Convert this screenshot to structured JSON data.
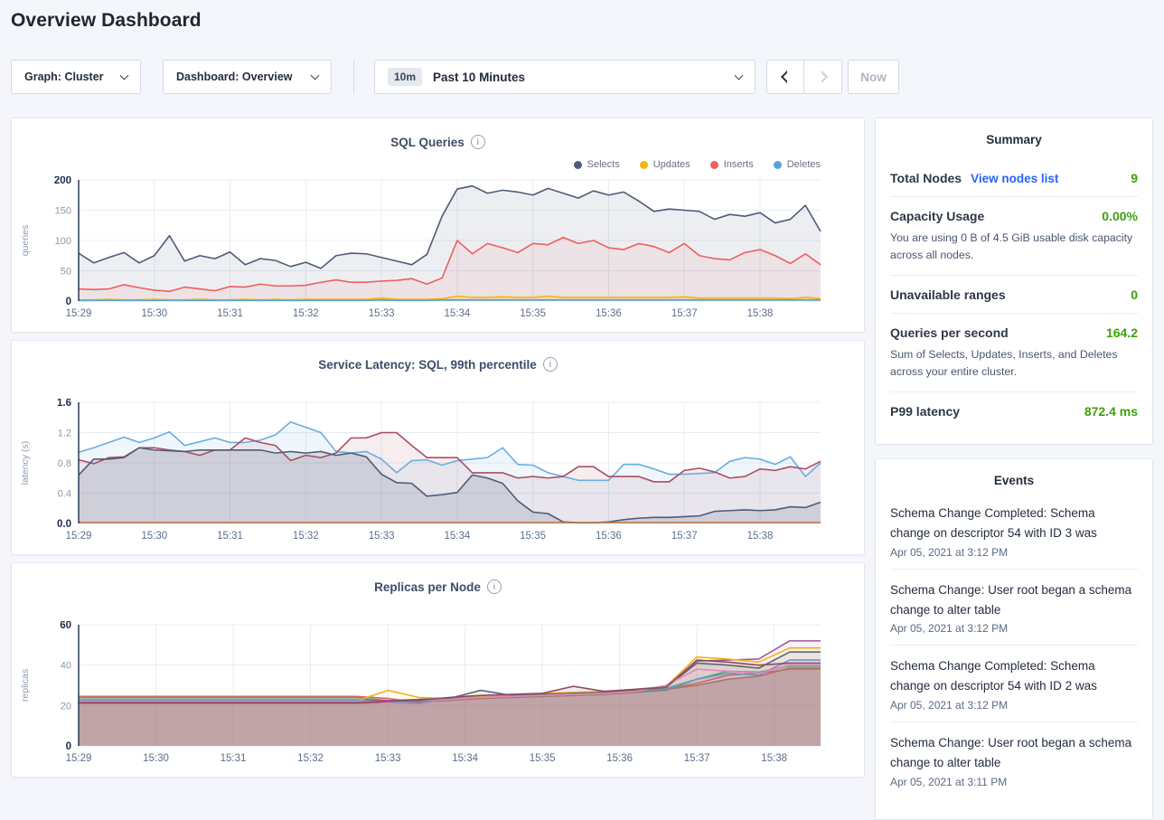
{
  "page": {
    "title": "Overview Dashboard"
  },
  "controls": {
    "graph_selector": {
      "label": "Graph: Cluster"
    },
    "dashboard_selector": {
      "label": "Dashboard: Overview"
    },
    "time_selector": {
      "badge": "10m",
      "label": "Past 10 Minutes"
    },
    "now_button": "Now"
  },
  "icons": {
    "dropdown_chevron": "chevron-down",
    "time_prev": "chevron-left",
    "time_next": "chevron-right",
    "chart_info": "info-circle"
  },
  "colors": {
    "accent_green": "#3da10a",
    "link_blue": "#2962ff",
    "grid": "#e8ecf2",
    "axis": "#2a3b5a",
    "tick_bold": "#1c2b49",
    "tick_mid": "#8b99b0",
    "x_tick": "#5c6f8d"
  },
  "chart_data": [
    {
      "type": "area",
      "title": "SQL Queries",
      "ylabel": "queries",
      "ylim": [
        0,
        200
      ],
      "ytick_labels": [
        "0",
        "50",
        "100",
        "150",
        "200"
      ],
      "yticks": [
        0,
        50,
        100,
        150,
        200
      ],
      "x_tick_labels": [
        "15:29",
        "15:30",
        "15:31",
        "15:32",
        "15:33",
        "15:34",
        "15:35",
        "15:36",
        "15:37",
        "15:38"
      ],
      "x_step_minutes": 0.2,
      "grid": true,
      "legend_position": "top-right",
      "series": [
        {
          "name": "Selects",
          "color": "#4e5c77",
          "fill_opacity": 0.1,
          "values": [
            79,
            63,
            72,
            80,
            63,
            75,
            108,
            66,
            75,
            70,
            81,
            60,
            70,
            67,
            57,
            64,
            54,
            75,
            79,
            78,
            72,
            66,
            60,
            77,
            140,
            185,
            190,
            178,
            183,
            180,
            175,
            186,
            178,
            170,
            182,
            175,
            180,
            165,
            148,
            152,
            150,
            148,
            135,
            143,
            140,
            146,
            129,
            135,
            158,
            115
          ]
        },
        {
          "name": "Updates",
          "color": "#f2b70a",
          "fill_opacity": 0.12,
          "values": [
            2,
            2,
            3,
            2,
            2,
            3,
            2,
            2,
            3,
            2,
            2,
            3,
            2,
            3,
            2,
            3,
            3,
            3,
            3,
            3,
            5,
            3,
            3,
            3,
            4,
            8,
            6,
            6,
            7,
            6,
            6,
            8,
            6,
            6,
            6,
            6,
            6,
            6,
            6,
            6,
            7,
            5,
            5,
            5,
            5,
            5,
            5,
            4,
            6,
            4
          ]
        },
        {
          "name": "Inserts",
          "color": "#ef5e5e",
          "fill_opacity": 0.08,
          "values": [
            20,
            19,
            20,
            27,
            22,
            18,
            16,
            23,
            20,
            17,
            24,
            23,
            28,
            25,
            25,
            26,
            31,
            35,
            31,
            31,
            33,
            34,
            37,
            28,
            38,
            100,
            78,
            95,
            88,
            80,
            95,
            93,
            105,
            95,
            100,
            88,
            85,
            95,
            90,
            80,
            95,
            75,
            70,
            68,
            80,
            85,
            75,
            62,
            78,
            60
          ]
        },
        {
          "name": "Deletes",
          "color": "#57a4d8",
          "fill_opacity": 0.25,
          "values": [
            1,
            1,
            1,
            1,
            1,
            1,
            1,
            1,
            1,
            1,
            1,
            1,
            1,
            1,
            1,
            1,
            1,
            1,
            1,
            1,
            2,
            1,
            1,
            1,
            2,
            2,
            2,
            2,
            2,
            2,
            2,
            2,
            2,
            2,
            2,
            2,
            2,
            2,
            2,
            2,
            2,
            2,
            2,
            2,
            2,
            2,
            2,
            2,
            2,
            2
          ]
        }
      ]
    },
    {
      "type": "area",
      "title": "Service Latency: SQL, 99th percentile",
      "ylabel": "latency (s)",
      "ylim": [
        0,
        1.6
      ],
      "ytick_labels": [
        "0.0",
        "0.4",
        "0.8",
        "1.2",
        "1.6"
      ],
      "yticks": [
        0,
        0.4,
        0.8,
        1.2,
        1.6
      ],
      "x_tick_labels": [
        "15:29",
        "15:30",
        "15:31",
        "15:32",
        "15:33",
        "15:34",
        "15:35",
        "15:36",
        "15:37",
        "15:38"
      ],
      "x_step_minutes": 0.2,
      "grid": true,
      "legend_position": "none",
      "series": [
        {
          "name": "p99-light-blue",
          "color": "#6aaede",
          "fill_opacity": 0.1,
          "values": [
            0.94,
            1.0,
            1.07,
            1.14,
            1.07,
            1.13,
            1.21,
            1.03,
            1.08,
            1.13,
            1.07,
            1.07,
            1.1,
            1.17,
            1.34,
            1.27,
            1.2,
            0.95,
            0.93,
            0.95,
            0.85,
            0.67,
            0.83,
            0.84,
            0.77,
            0.83,
            0.85,
            0.87,
            1.0,
            0.78,
            0.77,
            0.67,
            0.62,
            0.57,
            0.57,
            0.57,
            0.78,
            0.78,
            0.72,
            0.65,
            0.65,
            0.66,
            0.67,
            0.82,
            0.87,
            0.85,
            0.78,
            0.88,
            0.62,
            0.8
          ]
        },
        {
          "name": "p99-dark-red",
          "color": "#a94e63",
          "fill_opacity": 0.1,
          "values": [
            0.84,
            0.79,
            0.87,
            0.88,
            1.0,
            1.0,
            0.97,
            0.95,
            0.9,
            0.97,
            0.97,
            1.13,
            1.07,
            1.03,
            0.83,
            0.9,
            0.87,
            0.93,
            1.13,
            1.13,
            1.2,
            1.2,
            1.03,
            0.87,
            0.87,
            0.87,
            0.67,
            0.67,
            0.67,
            0.6,
            0.62,
            0.6,
            0.62,
            0.75,
            0.75,
            0.62,
            0.62,
            0.62,
            0.55,
            0.55,
            0.7,
            0.73,
            0.68,
            0.6,
            0.62,
            0.72,
            0.7,
            0.75,
            0.72,
            0.82
          ]
        },
        {
          "name": "p99-navy",
          "color": "#4e5c77",
          "fill_opacity": 0.16,
          "values": [
            0.64,
            0.85,
            0.85,
            0.87,
            1.0,
            0.97,
            0.96,
            0.95,
            0.97,
            0.97,
            0.97,
            0.97,
            0.97,
            0.93,
            0.95,
            0.93,
            0.95,
            0.9,
            0.93,
            0.88,
            0.65,
            0.54,
            0.53,
            0.36,
            0.38,
            0.41,
            0.64,
            0.6,
            0.53,
            0.3,
            0.15,
            0.13,
            0.02,
            0.01,
            0.01,
            0.02,
            0.05,
            0.07,
            0.08,
            0.08,
            0.09,
            0.1,
            0.16,
            0.17,
            0.18,
            0.17,
            0.18,
            0.22,
            0.21,
            0.28
          ]
        },
        {
          "name": "p99-orange",
          "color": "#c1773f",
          "fill_opacity": 0,
          "constant": 0.012
        }
      ]
    },
    {
      "type": "area",
      "title": "Replicas per Node",
      "ylabel": "replicas",
      "ylim": [
        0,
        60
      ],
      "ytick_labels": [
        "0",
        "20",
        "40",
        "60"
      ],
      "yticks": [
        0,
        20,
        40,
        60
      ],
      "x_tick_labels": [
        "15:29",
        "15:30",
        "15:31",
        "15:32",
        "15:33",
        "15:34",
        "15:35",
        "15:36",
        "15:37",
        "15:38"
      ],
      "x_step_minutes": 0.4,
      "grid": true,
      "legend_position": "none",
      "series": [
        {
          "name": "replica-series-1",
          "color": "#cf6960",
          "fill_opacity": 0.08,
          "values": [
            24.5,
            24.5,
            24.5,
            24.5,
            24.5,
            24.5,
            24.5,
            24.5,
            24.5,
            24.5,
            23.5,
            21.5,
            23,
            24,
            24.5,
            25,
            25.5,
            26,
            27,
            28,
            31,
            35,
            36,
            38,
            38
          ]
        },
        {
          "name": "replica-series-2",
          "color": "#57a77a",
          "fill_opacity": 0.08,
          "values": [
            23.8,
            23.8,
            23.8,
            23.8,
            23.8,
            23.8,
            23.8,
            23.8,
            23.8,
            23.8,
            22.5,
            22,
            23,
            23.5,
            24.5,
            25,
            25.5,
            26,
            26.5,
            27.5,
            33,
            37,
            36.5,
            39.5,
            39.5
          ]
        },
        {
          "name": "replica-series-3",
          "color": "#a9766c",
          "fill_opacity": 0.3,
          "values": [
            21,
            21,
            21,
            21,
            21,
            21,
            21,
            21,
            21,
            21,
            21.5,
            22,
            22.5,
            23.5,
            24,
            24.5,
            25,
            25.5,
            26.5,
            28,
            30,
            33,
            34.5,
            38.5,
            38.5
          ]
        },
        {
          "name": "replica-series-4",
          "color": "#a855a0",
          "fill_opacity": 0.07,
          "values": [
            22.8,
            22.8,
            22.8,
            22.8,
            22.8,
            22.8,
            22.8,
            22.8,
            22.8,
            22.8,
            22.5,
            23,
            23.5,
            24.5,
            25,
            25.5,
            26,
            26.5,
            27.5,
            29,
            42,
            42.5,
            43,
            52,
            52
          ]
        },
        {
          "name": "replica-series-5",
          "color": "#edb41c",
          "fill_opacity": 0.07,
          "values": [
            22.3,
            22.3,
            22.3,
            22.3,
            22.3,
            22.3,
            22.3,
            22.3,
            22.3,
            22.3,
            27.5,
            24,
            23.5,
            24.5,
            25.5,
            26,
            26.5,
            27,
            28,
            29.5,
            44,
            43,
            41.5,
            48.5,
            48.5
          ]
        },
        {
          "name": "replica-series-6",
          "color": "#6f94c4",
          "fill_opacity": 0.07,
          "values": [
            22.6,
            22.6,
            22.6,
            22.6,
            22.6,
            22.6,
            22.6,
            22.6,
            22.6,
            22.6,
            21.5,
            21,
            23.5,
            24,
            24.5,
            25,
            25.5,
            26,
            27,
            28.5,
            33,
            36,
            35,
            42.5,
            42.5
          ]
        },
        {
          "name": "replica-series-7",
          "color": "#5d6876",
          "fill_opacity": 0.07,
          "values": [
            21.8,
            21.8,
            21.8,
            21.8,
            21.8,
            21.8,
            21.8,
            21.8,
            21.8,
            21.8,
            22,
            23,
            23.5,
            27.5,
            25,
            25.5,
            26,
            26.5,
            27.5,
            29,
            41,
            40,
            38.5,
            46.5,
            46.5
          ]
        },
        {
          "name": "replica-series-8",
          "color": "#e289ba",
          "fill_opacity": 0.07,
          "values": [
            22.1,
            22.1,
            22.1,
            22.1,
            22.1,
            22.1,
            22.1,
            22.1,
            22.1,
            22.1,
            21.5,
            22.5,
            23,
            24,
            24.5,
            25,
            25.5,
            26,
            27,
            30,
            38,
            37,
            36,
            40,
            40
          ]
        },
        {
          "name": "replica-series-9",
          "color": "#8f4b60",
          "fill_opacity": 0.12,
          "values": [
            21.4,
            21.4,
            21.4,
            21.4,
            21.4,
            21.4,
            21.4,
            21.4,
            21.4,
            21.4,
            22,
            22.5,
            24,
            25,
            25.5,
            26,
            29.5,
            27,
            28,
            29,
            42.5,
            41.5,
            40,
            41,
            41
          ]
        }
      ]
    }
  ],
  "summary": {
    "title": "Summary",
    "total_nodes": {
      "label": "Total Nodes",
      "link": "View nodes list",
      "value": "9"
    },
    "capacity": {
      "label": "Capacity Usage",
      "value": "0.00%",
      "description": "You are using 0 B of 4.5 GiB usable disk capacity across all nodes."
    },
    "unavailable": {
      "label": "Unavailable ranges",
      "value": "0"
    },
    "qps": {
      "label": "Queries per second",
      "value": "164.2",
      "description": "Sum of Selects, Updates, Inserts, and Deletes across your entire cluster."
    },
    "p99": {
      "label": "P99 latency",
      "value": "872.4 ms"
    }
  },
  "events": {
    "title": "Events",
    "items": [
      {
        "message": "Schema Change Completed: Schema change on descriptor 54 with ID 3 was",
        "timestamp": "Apr 05, 2021 at 3:12 PM"
      },
      {
        "message": "Schema Change: User root began a schema change to alter table",
        "timestamp": "Apr 05, 2021 at 3:12 PM"
      },
      {
        "message": "Schema Change Completed: Schema change on descriptor 54 with ID 2 was",
        "timestamp": "Apr 05, 2021 at 3:12 PM"
      },
      {
        "message": "Schema Change: User root began a schema change to alter table",
        "timestamp": "Apr 05, 2021 at 3:11 PM"
      }
    ]
  }
}
